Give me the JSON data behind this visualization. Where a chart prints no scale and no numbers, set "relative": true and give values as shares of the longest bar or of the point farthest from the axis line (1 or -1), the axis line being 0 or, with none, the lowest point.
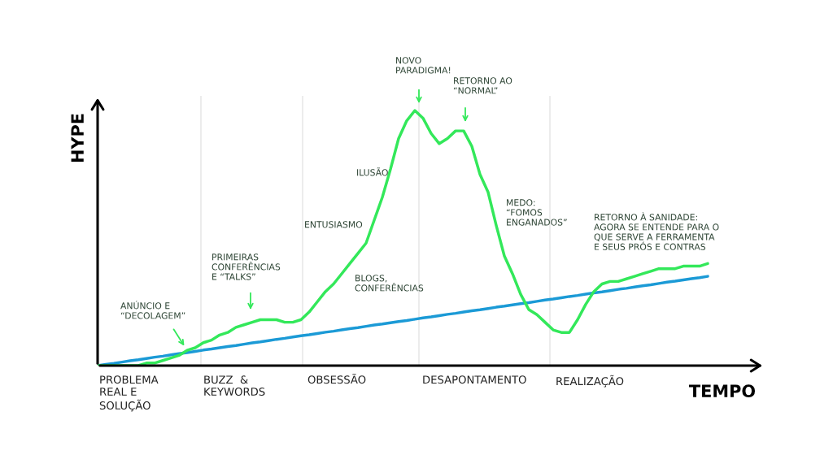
{
  "chart_data": {
    "type": "line",
    "relative": true,
    "xlabel": "TEMPO",
    "ylabel": "HYPE",
    "categories": [
      null,
      null,
      null,
      null,
      null,
      null,
      null,
      null,
      null,
      null,
      null,
      null,
      null,
      null,
      null,
      null,
      null,
      null,
      null,
      null,
      null,
      null,
      null,
      null,
      null,
      null,
      null,
      null,
      null,
      null,
      null,
      null,
      null,
      null,
      null,
      null,
      null,
      null,
      null,
      null,
      null,
      null,
      null,
      null,
      null,
      null,
      null,
      null,
      null,
      null,
      null,
      null,
      null,
      null,
      null,
      null,
      null,
      null,
      null,
      null,
      null,
      null,
      null,
      null,
      null,
      null,
      null,
      null,
      null,
      null,
      null,
      null,
      null,
      null,
      null,
      null
    ],
    "series": [
      {
        "color": "#1b9ad6",
        "values": [
          0,
          0.005,
          0.009,
          0.014,
          0.019,
          0.023,
          0.028,
          0.033,
          0.037,
          0.042,
          0.047,
          0.051,
          0.056,
          0.061,
          0.065,
          0.07,
          0.075,
          0.079,
          0.084,
          0.089,
          0.093,
          0.098,
          0.103,
          0.107,
          0.112,
          0.117,
          0.121,
          0.126,
          0.131,
          0.135,
          0.14,
          0.145,
          0.149,
          0.154,
          0.159,
          0.163,
          0.168,
          0.173,
          0.177,
          0.182,
          0.187,
          0.191,
          0.196,
          0.201,
          0.205,
          0.21,
          0.215,
          0.219,
          0.224,
          0.229,
          0.233,
          0.238,
          0.243,
          0.247,
          0.252,
          0.257,
          0.261,
          0.266,
          0.271,
          0.275,
          0.28,
          0.285,
          0.289,
          0.294,
          0.299,
          0.303,
          0.308,
          0.313,
          0.317,
          0.322,
          0.327,
          0.331,
          0.336,
          0.341,
          0.345,
          0.35
        ]
      },
      {
        "color": "#33e85a",
        "values": [
          0,
          0,
          0,
          0,
          0,
          0,
          0.01,
          0.01,
          0.02,
          0.03,
          0.04,
          0.06,
          0.07,
          0.09,
          0.1,
          0.12,
          0.13,
          0.15,
          0.16,
          0.17,
          0.18,
          0.18,
          0.18,
          0.17,
          0.17,
          0.18,
          0.21,
          0.25,
          0.29,
          0.32,
          0.36,
          0.4,
          0.44,
          0.48,
          0.57,
          0.66,
          0.77,
          0.89,
          0.96,
          1,
          0.97,
          0.91,
          0.87,
          0.89,
          0.92,
          0.92,
          0.86,
          0.75,
          0.68,
          0.55,
          0.43,
          0.36,
          0.28,
          0.22,
          0.2,
          0.17,
          0.14,
          0.13,
          0.13,
          0.18,
          0.24,
          0.29,
          0.32,
          0.33,
          0.33,
          0.34,
          0.35,
          0.36,
          0.37,
          0.38,
          0.38,
          0.38,
          0.39,
          0.39,
          0.39,
          0.4
        ]
      }
    ],
    "annotations": [
      "PROBLEMA\nREAL E\nSOLUÇÃO",
      "BUZZ  &\nKEYWORDS",
      "OBSESSÃO",
      "DESAPONTAMENTO",
      "REALIZAÇÃO",
      "ANÚNCIO E\n“DECOLAGEM”",
      "PRIMEIRAS\nCONFERÊNCIAS\nE “TALKS”",
      "BLOGS,\nCONFERÊNCIAS",
      "ENTUSIASMO",
      "ILUSÃO",
      "NOVO\nPARADIGMA!",
      "RETORNO AO\n“NORMAL”",
      "MEDO:\n“FOMOS\nENGANADOS”",
      "RETORNO À SANIDADE:\nAGORA SE ENTENDE PARA O\nQUE SERVE A FERRAMENTA\nE SEUS PRÓS E CONTRAS"
    ]
  }
}
